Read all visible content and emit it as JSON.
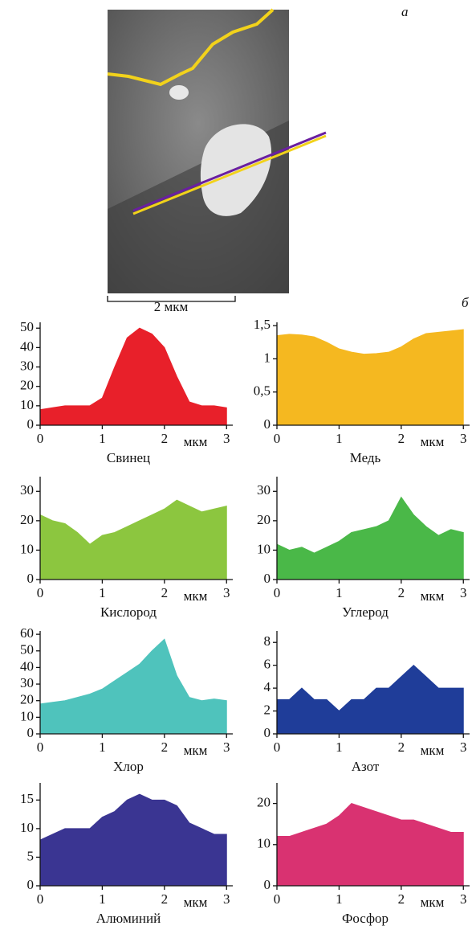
{
  "figure": {
    "panel_a": "а",
    "panel_b": "б",
    "scale_bar": "2 мкм"
  },
  "chart_data": [
    {
      "type": "area",
      "title": "Свинец",
      "xlabel": "мкм",
      "color": "#e8202a",
      "x": [
        0,
        0.2,
        0.4,
        0.6,
        0.8,
        1,
        1.2,
        1.4,
        1.6,
        1.8,
        2,
        2.2,
        2.4,
        2.6,
        2.8,
        3
      ],
      "values": [
        8,
        9,
        10,
        10,
        10,
        14,
        30,
        45,
        50,
        47,
        40,
        25,
        12,
        10,
        10,
        9
      ],
      "xlim": [
        0,
        3.1
      ],
      "xticks": [
        0,
        1,
        2,
        3
      ],
      "ylim": [
        0,
        53
      ],
      "yticks": [
        0,
        10,
        20,
        30,
        40,
        50
      ]
    },
    {
      "type": "area",
      "title": "Медь",
      "xlabel": "мкм",
      "color": "#f5b820",
      "x": [
        0,
        0.2,
        0.4,
        0.6,
        0.8,
        1,
        1.2,
        1.4,
        1.6,
        1.8,
        2,
        2.2,
        2.4,
        2.6,
        2.8,
        3
      ],
      "values": [
        1.35,
        1.37,
        1.36,
        1.33,
        1.25,
        1.15,
        1.1,
        1.07,
        1.08,
        1.1,
        1.18,
        1.3,
        1.38,
        1.4,
        1.42,
        1.44
      ],
      "xlim": [
        0,
        3.1
      ],
      "xticks": [
        0,
        1,
        2,
        3
      ],
      "ylim": [
        0,
        1.55
      ],
      "yticks": [
        0,
        {
          "value": 0.5,
          "label": "0,5"
        },
        1,
        {
          "value": 1.5,
          "label": "1,5"
        }
      ]
    },
    {
      "type": "area",
      "title": "Кислород",
      "xlabel": "мкм",
      "color": "#8cc63f",
      "x": [
        0,
        0.2,
        0.4,
        0.6,
        0.8,
        1,
        1.2,
        1.4,
        1.6,
        1.8,
        2,
        2.2,
        2.4,
        2.6,
        2.8,
        3
      ],
      "values": [
        22,
        20,
        19,
        16,
        12,
        15,
        16,
        18,
        20,
        22,
        24,
        27,
        25,
        23,
        24,
        25
      ],
      "xlim": [
        0,
        3.1
      ],
      "xticks": [
        0,
        1,
        2,
        3
      ],
      "ylim": [
        0,
        35
      ],
      "yticks": [
        0,
        10,
        20,
        30
      ]
    },
    {
      "type": "area",
      "title": "Углерод",
      "xlabel": "мкм",
      "color": "#4ab848",
      "x": [
        0,
        0.2,
        0.4,
        0.6,
        0.8,
        1,
        1.2,
        1.4,
        1.6,
        1.8,
        2,
        2.2,
        2.4,
        2.6,
        2.8,
        3
      ],
      "values": [
        12,
        10,
        11,
        9,
        11,
        13,
        16,
        17,
        18,
        20,
        28,
        22,
        18,
        15,
        17,
        16
      ],
      "xlim": [
        0,
        3.1
      ],
      "xticks": [
        0,
        1,
        2,
        3
      ],
      "ylim": [
        0,
        35
      ],
      "yticks": [
        0,
        10,
        20,
        30
      ]
    },
    {
      "type": "area",
      "title": "Хлор",
      "xlabel": "мкм",
      "color": "#4fc3bc",
      "x": [
        0,
        0.2,
        0.4,
        0.6,
        0.8,
        1,
        1.2,
        1.4,
        1.6,
        1.8,
        2,
        2.2,
        2.4,
        2.6,
        2.8,
        3
      ],
      "values": [
        18,
        19,
        20,
        22,
        24,
        27,
        32,
        37,
        42,
        50,
        57,
        35,
        22,
        20,
        21,
        20
      ],
      "xlim": [
        0,
        3.1
      ],
      "xticks": [
        0,
        1,
        2,
        3
      ],
      "ylim": [
        0,
        62
      ],
      "yticks": [
        0,
        10,
        20,
        30,
        40,
        50,
        60
      ]
    },
    {
      "type": "area",
      "title": "Азот",
      "xlabel": "мкм",
      "color": "#1f3d99",
      "x": [
        0,
        0.2,
        0.4,
        0.6,
        0.8,
        1,
        1.2,
        1.4,
        1.6,
        1.8,
        2,
        2.2,
        2.4,
        2.6,
        2.8,
        3
      ],
      "values": [
        3,
        3,
        4,
        3,
        3,
        2,
        3,
        3,
        4,
        4,
        5,
        6,
        5,
        4,
        4,
        4
      ],
      "xlim": [
        0,
        3.1
      ],
      "xticks": [
        0,
        1,
        2,
        3
      ],
      "ylim": [
        0,
        9
      ],
      "yticks": [
        0,
        2,
        4,
        6,
        8
      ]
    },
    {
      "type": "area",
      "title": "Алюминий",
      "xlabel": "мкм",
      "color": "#3a3592",
      "x": [
        0,
        0.2,
        0.4,
        0.6,
        0.8,
        1,
        1.2,
        1.4,
        1.6,
        1.8,
        2,
        2.2,
        2.4,
        2.6,
        2.8,
        3
      ],
      "values": [
        8,
        9,
        10,
        10,
        10,
        12,
        13,
        15,
        16,
        15,
        15,
        14,
        11,
        10,
        9,
        9
      ],
      "xlim": [
        0,
        3.1
      ],
      "xticks": [
        0,
        1,
        2,
        3
      ],
      "ylim": [
        0,
        18
      ],
      "yticks": [
        0,
        5,
        10,
        15
      ]
    },
    {
      "type": "area",
      "title": "Фосфор",
      "xlabel": "мкм",
      "color": "#d93271",
      "x": [
        0,
        0.2,
        0.4,
        0.6,
        0.8,
        1,
        1.2,
        1.4,
        1.6,
        1.8,
        2,
        2.2,
        2.4,
        2.6,
        2.8,
        3
      ],
      "values": [
        12,
        12,
        13,
        14,
        15,
        17,
        20,
        19,
        18,
        17,
        16,
        16,
        15,
        14,
        13,
        13
      ],
      "xlim": [
        0,
        3.1
      ],
      "xticks": [
        0,
        1,
        2,
        3
      ],
      "ylim": [
        0,
        25
      ],
      "yticks": [
        0,
        10,
        20
      ]
    }
  ]
}
